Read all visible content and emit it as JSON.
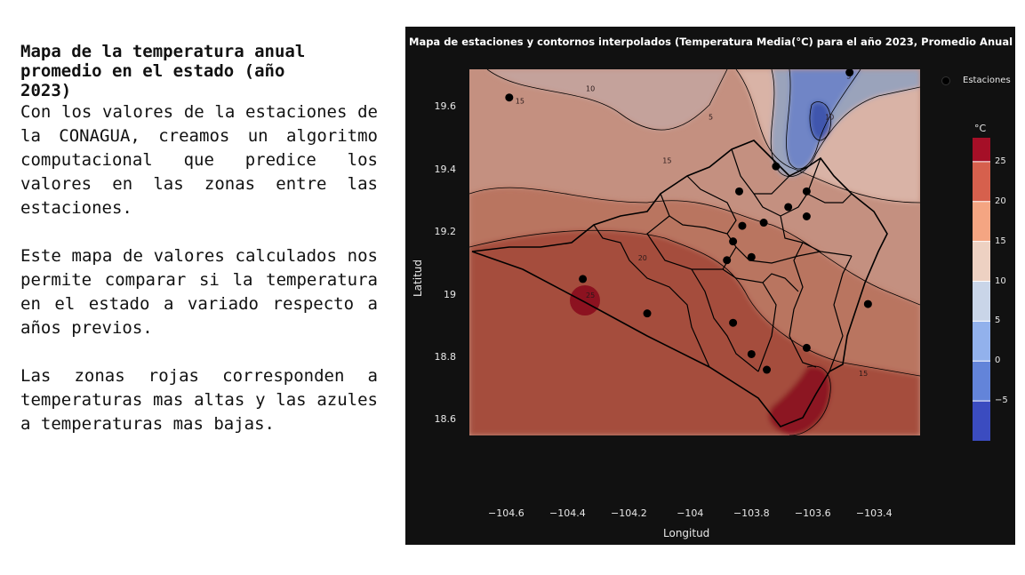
{
  "text_panel": {
    "heading_line1": "Mapa de la temperatura anual",
    "heading_line2": "promedio en el estado (año",
    "heading_line3": "2023)",
    "paragraph1": "Con los valores de la estaciones de la CONAGUA, creamos un algoritmo computacional que predice los valores en las zonas entre las estaciones.",
    "paragraph2": "Este mapa de valores calculados nos permite comparar si la temperatura en el estado a variado respecto a años previos.",
    "paragraph3": "Las zonas rojas corresponden a temperaturas mas altas y las azules a temperaturas mas bajas."
  },
  "figure": {
    "title": "Mapa de estaciones y contornos interpolados (Temperatura Media(°C) para el año 2023, Promedio Anual",
    "xlabel": "Longitud",
    "ylabel": "Latitud",
    "legend_label": "Estaciones",
    "colorbar_title": "°C",
    "background": "#111111"
  },
  "chart_data": {
    "type": "contour-map",
    "title": "Mapa de estaciones y contornos interpolados (Temperatura Media(°C) para el año 2023, Promedio Anual",
    "xlabel": "Longitud",
    "ylabel": "Latitud",
    "xlim": [
      -104.72,
      -103.25
    ],
    "ylim": [
      18.55,
      19.72
    ],
    "x_ticks": [
      -104.6,
      -104.4,
      -104.2,
      -104,
      -103.8,
      -103.6,
      -103.4
    ],
    "x_tick_labels": [
      "−104.6",
      "−104.4",
      "−104.2",
      "−104",
      "−103.8",
      "−103.6",
      "−103.4"
    ],
    "y_ticks": [
      19.6,
      19.4,
      19.2,
      19,
      18.8,
      18.6
    ],
    "y_tick_labels": [
      "19.6",
      "19.4",
      "19.2",
      "19",
      "18.8",
      "18.6"
    ],
    "colorbar": {
      "title": "°C",
      "ticks": [
        25,
        20,
        15,
        10,
        5,
        0,
        -5
      ],
      "tick_labels": [
        "25",
        "20",
        "15",
        "10",
        "5",
        "0",
        "−5"
      ],
      "range": [
        -10,
        28
      ],
      "bands": [
        {
          "from": 25,
          "to": 28,
          "color": "#a50f27"
        },
        {
          "from": 20,
          "to": 25,
          "color": "#d6604d"
        },
        {
          "from": 15,
          "to": 20,
          "color": "#f4a582"
        },
        {
          "from": 10,
          "to": 15,
          "color": "#edd1c2"
        },
        {
          "from": 5,
          "to": 10,
          "color": "#c9d5e8"
        },
        {
          "from": 0,
          "to": 5,
          "color": "#92b1ec"
        },
        {
          "from": -5,
          "to": 0,
          "color": "#6384d9"
        },
        {
          "from": -10,
          "to": -5,
          "color": "#3b4cc0"
        }
      ]
    },
    "contour_labels": [
      {
        "text": "15",
        "lon": -104.57,
        "lat": 19.61
      },
      {
        "text": "10",
        "lon": -104.34,
        "lat": 19.65
      },
      {
        "text": "5",
        "lon": -103.94,
        "lat": 19.56
      },
      {
        "text": "15",
        "lon": -104.09,
        "lat": 19.42
      },
      {
        "text": "10",
        "lon": -103.56,
        "lat": 19.56
      },
      {
        "text": "5",
        "lon": -103.49,
        "lat": 19.69
      },
      {
        "text": "20",
        "lon": -104.17,
        "lat": 19.11
      },
      {
        "text": "25",
        "lon": -104.34,
        "lat": 18.99
      },
      {
        "text": "15",
        "lon": -103.45,
        "lat": 18.74
      }
    ],
    "series": [
      {
        "name": "Estaciones",
        "points": [
          {
            "lon": -104.59,
            "lat": 19.63
          },
          {
            "lon": -103.48,
            "lat": 19.71
          },
          {
            "lon": -103.72,
            "lat": 19.41
          },
          {
            "lon": -103.84,
            "lat": 19.33
          },
          {
            "lon": -103.68,
            "lat": 19.28
          },
          {
            "lon": -103.62,
            "lat": 19.33
          },
          {
            "lon": -103.62,
            "lat": 19.25
          },
          {
            "lon": -103.76,
            "lat": 19.23
          },
          {
            "lon": -103.83,
            "lat": 19.22
          },
          {
            "lon": -103.86,
            "lat": 19.17
          },
          {
            "lon": -103.8,
            "lat": 19.12
          },
          {
            "lon": -103.88,
            "lat": 19.11
          },
          {
            "lon": -104.35,
            "lat": 19.05
          },
          {
            "lon": -104.14,
            "lat": 18.94
          },
          {
            "lon": -103.86,
            "lat": 18.91
          },
          {
            "lon": -103.8,
            "lat": 18.81
          },
          {
            "lon": -103.75,
            "lat": 18.76
          },
          {
            "lon": -103.62,
            "lat": 18.83
          },
          {
            "lon": -103.42,
            "lat": 18.97
          }
        ]
      }
    ],
    "legend": "top-right",
    "grid": true
  }
}
